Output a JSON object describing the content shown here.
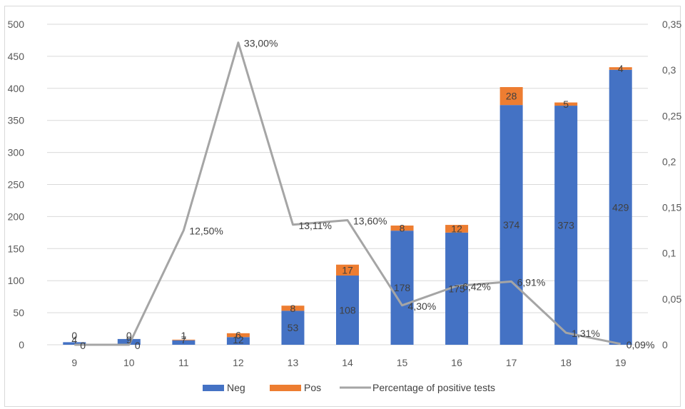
{
  "chart_data": {
    "type": "bar",
    "stacked": true,
    "secondary_axis": true,
    "categories": [
      "9",
      "10",
      "11",
      "12",
      "13",
      "14",
      "15",
      "16",
      "17",
      "18",
      "19"
    ],
    "series": [
      {
        "name": "Neg",
        "type": "bar",
        "color": "#4472c4",
        "values": [
          4,
          9,
          7,
          12,
          53,
          108,
          178,
          175,
          374,
          373,
          429
        ],
        "labels": [
          "4",
          "9",
          "7",
          "12",
          "53",
          "108",
          "178",
          "175",
          "374",
          "373",
          "429"
        ]
      },
      {
        "name": "Pos",
        "type": "bar",
        "color": "#ed7d31",
        "values": [
          0,
          0,
          1,
          6,
          8,
          17,
          8,
          12,
          28,
          5,
          4
        ],
        "labels": [
          "0",
          "0",
          "1",
          "6",
          "8",
          "17",
          "8",
          "12",
          "28",
          "5",
          "4"
        ]
      },
      {
        "name": "Percentage of positive tests",
        "type": "line",
        "axis": "right",
        "color": "#a5a5a5",
        "values": [
          0,
          0,
          0.125,
          0.33,
          0.1311,
          0.136,
          0.043,
          0.0642,
          0.0691,
          0.0131,
          0.0009
        ],
        "labels": [
          "0",
          "0",
          "12,50%",
          "33,00%",
          "13,11%",
          "13,60%",
          "4,30%",
          "6,42%",
          "6,91%",
          "1,31%",
          "0,09%"
        ]
      }
    ],
    "left_axis": {
      "min": 0,
      "max": 500,
      "ticks": [
        "0",
        "50",
        "100",
        "150",
        "200",
        "250",
        "300",
        "350",
        "400",
        "450",
        "500"
      ]
    },
    "right_axis": {
      "min": 0,
      "max": 0.35,
      "ticks": [
        "0",
        "0,05",
        "0,1",
        "0,15",
        "0,2",
        "0,25",
        "0,3",
        "0,35"
      ]
    },
    "grid": true,
    "legend": "bottom"
  }
}
